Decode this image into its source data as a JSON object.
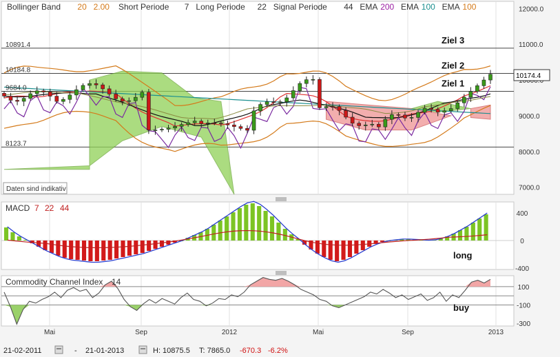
{
  "chart_data": {
    "type": "line",
    "x_ticks": [
      "Mai",
      "Sep",
      "2012",
      "Mai",
      "Sep",
      "2013"
    ],
    "main": {
      "legend": [
        {
          "text": "Bollinger Band",
          "color": "#333333"
        },
        {
          "text": "20",
          "color": "#d47a1a"
        },
        {
          "text": "2.00",
          "color": "#d47a1a"
        },
        {
          "text": "Short Periode",
          "color": "#333333"
        },
        {
          "text": "7",
          "color": "#333333"
        },
        {
          "text": "Long Periode",
          "color": "#333333"
        },
        {
          "text": "22",
          "color": "#333333"
        },
        {
          "text": "Signal Periode",
          "color": "#333333"
        },
        {
          "text": "44",
          "color": "#333333"
        },
        {
          "text": "EMA",
          "color": "#333333"
        },
        {
          "text": "200",
          "color": "#9b1fa3"
        },
        {
          "text": "EMA",
          "color": "#333333"
        },
        {
          "text": "100",
          "color": "#1b8f8f"
        },
        {
          "text": "EMA",
          "color": "#333333"
        },
        {
          "text": "100",
          "color": "#d47a1a"
        }
      ],
      "y_ticks": [
        "12000.0",
        "11000.0",
        "10000.0",
        "9000.0",
        "8000.0",
        "7000.0"
      ],
      "ylim": [
        6800,
        12200
      ],
      "price_badge": "10174.4",
      "level_labels": [
        {
          "text": "10891.4",
          "value": 10891.4
        },
        {
          "text": "10184.8",
          "value": 10184.8
        },
        {
          "text": "9684.0",
          "value": 9684.0
        },
        {
          "text": "8123.7",
          "value": 8123.7
        }
      ],
      "targets": [
        {
          "text": "Ziel 3",
          "value": 10891.4
        },
        {
          "text": "Ziel 2",
          "value": 10184.8
        },
        {
          "text": "Ziel 1",
          "value": 9684.0
        }
      ],
      "note": "Daten sind indikativ"
    },
    "macd": {
      "title": "MACD",
      "params": [
        "7",
        "22",
        "44"
      ],
      "y_ticks": [
        "400",
        "0",
        "-400"
      ],
      "ylim": [
        -420,
        560
      ],
      "signal_label": "long",
      "histogram": [
        190,
        120,
        60,
        10,
        -40,
        -90,
        -140,
        -180,
        -220,
        -250,
        -270,
        -280,
        -290,
        -300,
        -300,
        -290,
        -280,
        -260,
        -240,
        -220,
        -200,
        -180,
        -150,
        -120,
        -90,
        -60,
        -30,
        0,
        40,
        80,
        120,
        170,
        230,
        290,
        350,
        410,
        470,
        520,
        540,
        500,
        430,
        350,
        260,
        170,
        90,
        20,
        -60,
        -130,
        -190,
        -240,
        -280,
        -300,
        -280,
        -240,
        -190,
        -140,
        -90,
        -50,
        -20,
        0,
        10,
        20,
        20,
        15,
        10,
        5,
        10,
        30,
        60,
        100,
        150,
        200,
        260,
        320,
        380
      ]
    },
    "cci": {
      "title": "Commodity Channel Index",
      "param": "14",
      "y_ticks": [
        "100",
        "-100",
        "-300"
      ],
      "ylim": [
        -330,
        220
      ],
      "signal_label": "buy",
      "values": [
        40,
        -120,
        -310,
        -150,
        -60,
        -80,
        -40,
        -10,
        40,
        -20,
        60,
        90,
        50,
        70,
        -20,
        30,
        120,
        160,
        80,
        -40,
        -120,
        -160,
        -90,
        -40,
        -80,
        -30,
        -60,
        -90,
        -20,
        30,
        -40,
        -60,
        -110,
        -80,
        -30,
        -40,
        10,
        -10,
        40,
        120,
        160,
        200,
        180,
        170,
        190,
        160,
        120,
        70,
        40,
        10,
        -40,
        -60,
        -110,
        -130,
        -100,
        -70,
        -40,
        -10,
        40,
        20,
        70,
        30,
        -20,
        10,
        -40,
        -10,
        20,
        -50,
        -20,
        40,
        -60,
        10,
        -20,
        60,
        150,
        170,
        140,
        180
      ]
    },
    "footer": {
      "from": "21-02-2011",
      "dash": "-",
      "to": "21-01-2013",
      "high": "H: 10875.5",
      "low": "T: 7865.0",
      "change_abs": "-670.3",
      "change_pct": "-6.2%"
    }
  }
}
